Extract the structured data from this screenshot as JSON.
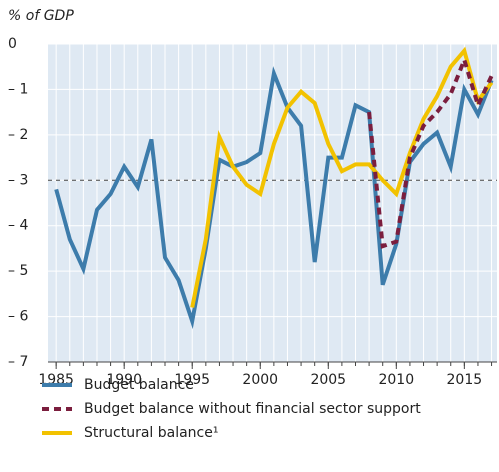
{
  "chart_data": {
    "type": "line",
    "unit_label": "% of GDP",
    "x": [
      1985,
      1986,
      1987,
      1988,
      1989,
      1990,
      1991,
      1992,
      1993,
      1994,
      1995,
      1996,
      1997,
      1998,
      1999,
      2000,
      2001,
      2002,
      2003,
      2004,
      2005,
      2006,
      2007,
      2008,
      2009,
      2010,
      2011,
      2012,
      2013,
      2014,
      2015,
      2016,
      2017
    ],
    "xlim": [
      1984.4,
      2017.4
    ],
    "xticks": [
      1985,
      1990,
      1995,
      2000,
      2005,
      2010,
      2015
    ],
    "ylim": [
      -7,
      0
    ],
    "yticks": [
      {
        "value": 0,
        "label": "0"
      },
      {
        "value": -1,
        "label": "– 1"
      },
      {
        "value": -2,
        "label": "– 2"
      },
      {
        "value": -3,
        "label": "– 3"
      },
      {
        "value": -4,
        "label": "– 4"
      },
      {
        "value": -5,
        "label": "– 5"
      },
      {
        "value": -6,
        "label": "– 6"
      },
      {
        "value": -7,
        "label": "– 7"
      }
    ],
    "grid": true,
    "reference_line": -3,
    "series": [
      {
        "name": "Budget balance",
        "color": "#3d7cab",
        "dashed": false,
        "values": [
          -3.2,
          -4.3,
          -4.95,
          -3.65,
          -3.3,
          -2.7,
          -3.15,
          -2.1,
          -4.7,
          -5.2,
          -6.1,
          -4.5,
          -2.55,
          -2.7,
          -2.6,
          -2.4,
          -0.65,
          -1.4,
          -1.8,
          -4.8,
          -2.5,
          -2.5,
          -1.35,
          -1.5,
          -5.3,
          -4.4,
          -2.6,
          -2.2,
          -1.95,
          -2.7,
          -1.0,
          -1.55,
          -0.8
        ]
      },
      {
        "name": "Budget balance without financial sector support",
        "color": "#7b1e3e",
        "dashed": true,
        "values": [
          null,
          null,
          null,
          null,
          null,
          null,
          null,
          null,
          null,
          null,
          null,
          null,
          null,
          null,
          null,
          null,
          null,
          null,
          null,
          null,
          null,
          null,
          null,
          -1.5,
          -4.45,
          -4.35,
          -2.5,
          -1.8,
          -1.5,
          -1.1,
          -0.35,
          -1.35,
          -0.7
        ]
      },
      {
        "name": "Structural balance¹",
        "color": "#f2c200",
        "dashed": false,
        "values": [
          null,
          null,
          null,
          null,
          null,
          null,
          null,
          null,
          null,
          null,
          -5.8,
          -4.3,
          -2.05,
          -2.7,
          -3.1,
          -3.3,
          -2.2,
          -1.4,
          -1.05,
          -1.3,
          -2.2,
          -2.8,
          -2.65,
          -2.65,
          -3.0,
          -3.3,
          -2.4,
          -1.65,
          -1.15,
          -0.5,
          -0.15,
          -1.25,
          -0.85
        ]
      }
    ]
  }
}
